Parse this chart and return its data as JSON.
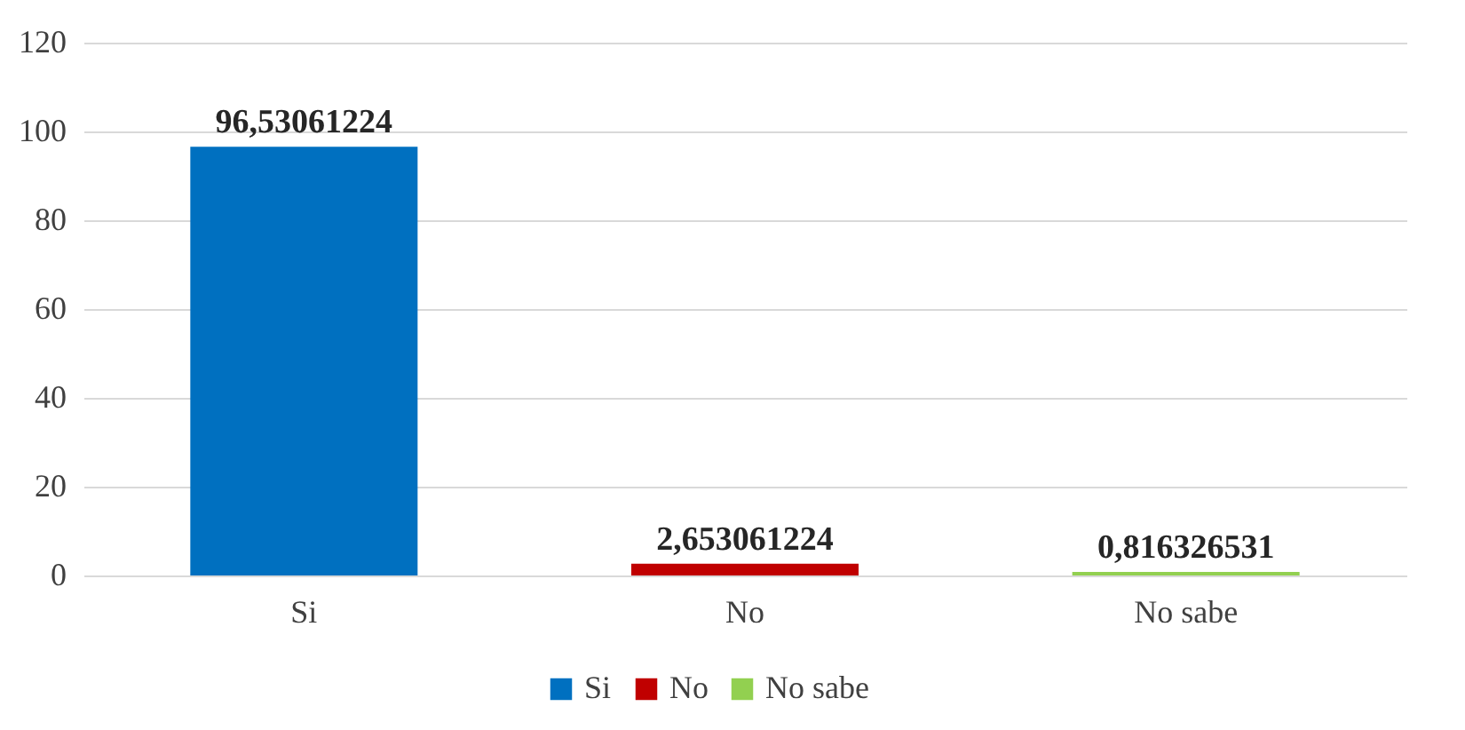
{
  "chart_data": {
    "type": "bar",
    "categories": [
      "Si",
      "No",
      "No sabe"
    ],
    "series": [
      {
        "name": "Si",
        "color": "#0070c0",
        "values": [
          96.53061224,
          null,
          null
        ],
        "value_labels": [
          "96,53061224",
          null,
          null
        ]
      },
      {
        "name": "No",
        "color": "#c00000",
        "values": [
          null,
          2.653061224,
          null
        ],
        "value_labels": [
          null,
          "2,653061224",
          null
        ]
      },
      {
        "name": "No sabe",
        "color": "#92d050",
        "values": [
          null,
          null,
          0.816326531
        ],
        "value_labels": [
          null,
          null,
          "0,816326531"
        ]
      }
    ],
    "ylim": [
      0,
      120
    ],
    "yticks": [
      0,
      20,
      40,
      60,
      80,
      100,
      120
    ],
    "grid": "y",
    "legend": "bottom"
  }
}
